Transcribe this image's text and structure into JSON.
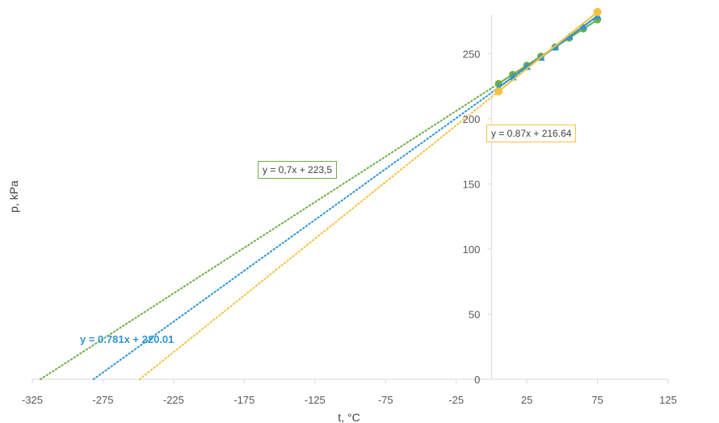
{
  "chart_data": {
    "type": "scatter",
    "title": "",
    "xlabel": "t, °C",
    "ylabel": "p, kPa",
    "xlim": [
      -325,
      125
    ],
    "ylim": [
      0,
      280
    ],
    "xticks": [
      -325,
      -275,
      -225,
      -175,
      -125,
      -75,
      -25,
      25,
      75,
      125
    ],
    "yticks": [
      0,
      50,
      100,
      150,
      200,
      250
    ],
    "grid": false,
    "colors": {
      "green": "#70ad47",
      "blue": "#2e95d3",
      "orange": "#f7c142",
      "axis": "#d9d9d9"
    },
    "series": [
      {
        "color": "#70ad47",
        "x": [
          5,
          15,
          25,
          35,
          45,
          55,
          65,
          75
        ],
        "y": [
          227,
          234,
          241,
          248,
          255,
          262,
          269,
          276
        ],
        "trendline": {
          "slope": 0.7,
          "intercept": 223.5,
          "label": "y = 0,7x + 223,5",
          "box_color": "#70ad47"
        }
      },
      {
        "color": "#2e95d3",
        "x": [
          5,
          15,
          25,
          35,
          45,
          55,
          65,
          75
        ],
        "y": [
          224,
          232,
          240,
          247,
          255,
          263,
          271,
          279
        ],
        "trendline": {
          "slope": 0.781,
          "intercept": 220.01,
          "label": "y = 0.781x + 220.01",
          "box_color": ""
        }
      },
      {
        "color": "#f7c142",
        "x": [
          5,
          75
        ],
        "y": [
          221,
          282
        ],
        "trendline": {
          "slope": 0.87,
          "intercept": 216.64,
          "label": "y = 0.87x + 216.64",
          "box_color": "#f7c142"
        }
      }
    ]
  }
}
